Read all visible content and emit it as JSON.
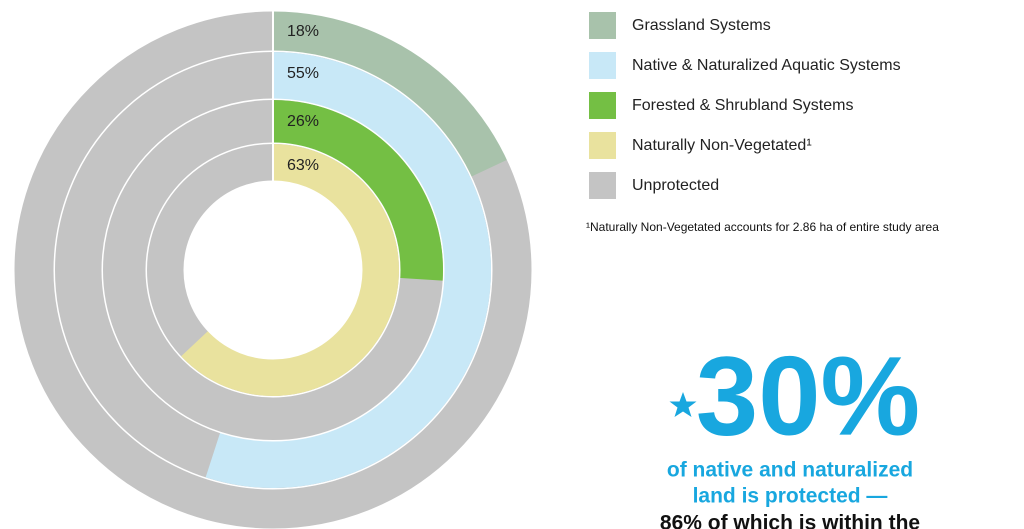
{
  "chart_data": {
    "type": "nested-donut",
    "series": [
      {
        "name": "Grassland Systems",
        "color": "#a8c2ab",
        "values": [
          18
        ],
        "value_labels": [
          "18%"
        ]
      },
      {
        "name": "Native & Naturalized Aquatic Systems",
        "color": "#c8e8f7",
        "values": [
          55
        ],
        "value_labels": [
          "55%"
        ]
      },
      {
        "name": "Forested & Shrubland Systems",
        "color": "#74bf44",
        "values": [
          26
        ],
        "value_labels": [
          "26%"
        ]
      },
      {
        "name": "Naturally Non-Vegetated¹",
        "color": "#e9e29e",
        "values": [
          63
        ],
        "value_labels": [
          "63%"
        ]
      }
    ],
    "remainder": {
      "name": "Unprotected",
      "color": "#c4c4c4"
    },
    "footnote": "¹Naturally Non-Vegetated accounts for 2.86 ha of entire study area",
    "callout": {
      "headline": "30%",
      "lines": [
        "of native and naturalized",
        "land is protected —"
      ],
      "continuation": "86% of which is within the"
    }
  }
}
